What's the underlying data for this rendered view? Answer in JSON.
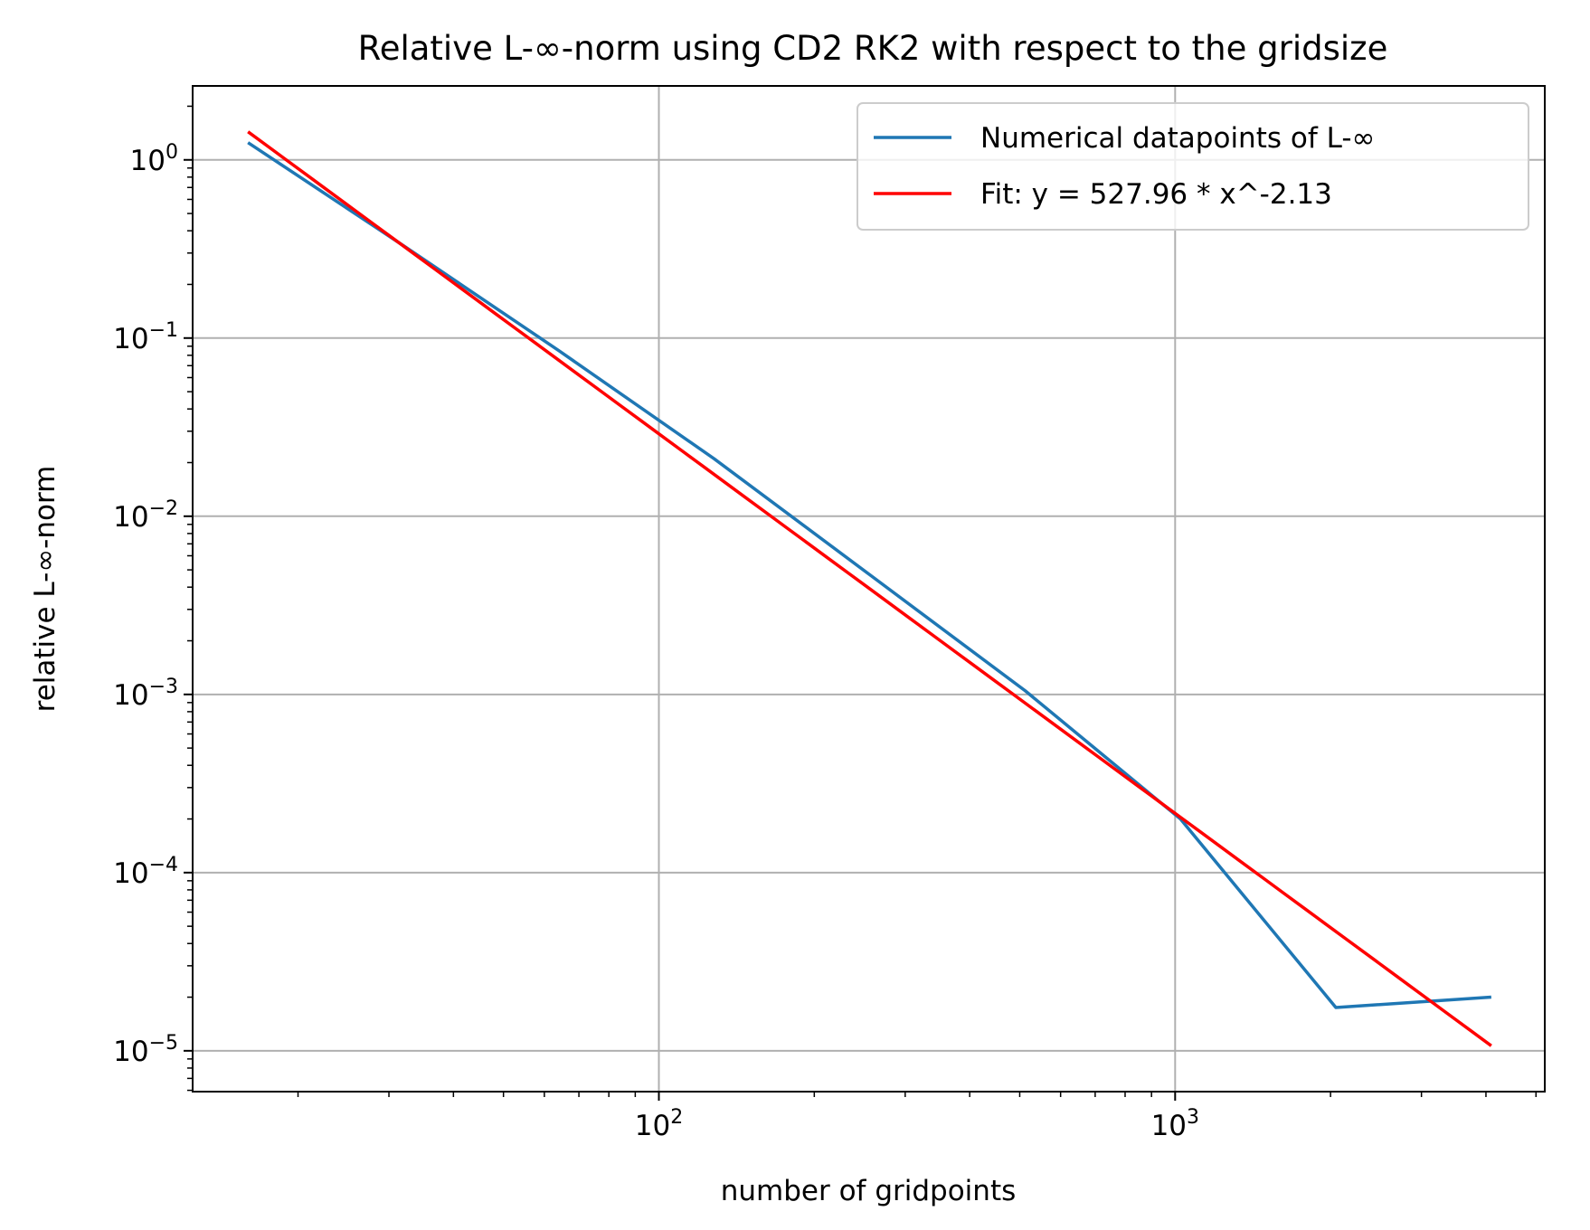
{
  "chart_data": {
    "type": "line",
    "title": "Relative L-∞-norm using CD2 RK2 with respect to the gridsize",
    "xlabel": "number of gridpoints",
    "ylabel": "relative L-∞-norm",
    "xscale": "log",
    "yscale": "log",
    "xlim": [
      12.5,
      5200
    ],
    "ylim": [
      5.9e-06,
      2.6
    ],
    "grid": true,
    "legend_position": "top-right",
    "x_ticks": [
      {
        "value": 100,
        "base": "10",
        "exp": "2"
      },
      {
        "value": 1000,
        "base": "10",
        "exp": "3"
      }
    ],
    "y_ticks": [
      {
        "value": 1,
        "base": "10",
        "exp": "0"
      },
      {
        "value": 0.1,
        "base": "10",
        "exp": "−1"
      },
      {
        "value": 0.01,
        "base": "10",
        "exp": "−2"
      },
      {
        "value": 0.001,
        "base": "10",
        "exp": "−3"
      },
      {
        "value": 0.0001,
        "base": "10",
        "exp": "−4"
      },
      {
        "value": 1e-05,
        "base": "10",
        "exp": "−5"
      }
    ],
    "series": [
      {
        "name": "Numerical datapoints of L-∞",
        "color": "#1f77b4",
        "x": [
          16,
          32,
          64,
          128,
          256,
          512,
          1024,
          2048,
          4096
        ],
        "y": [
          1.25,
          0.33,
          0.085,
          0.021,
          0.0047,
          0.00105,
          0.0002,
          1.75e-05,
          2e-05
        ]
      },
      {
        "name": "Fit: y = 527.96 * x^-2.13",
        "color": "#ff0000",
        "function": {
          "a": 527.96,
          "b": -2.13
        },
        "x": [
          16,
          4096
        ]
      }
    ]
  }
}
